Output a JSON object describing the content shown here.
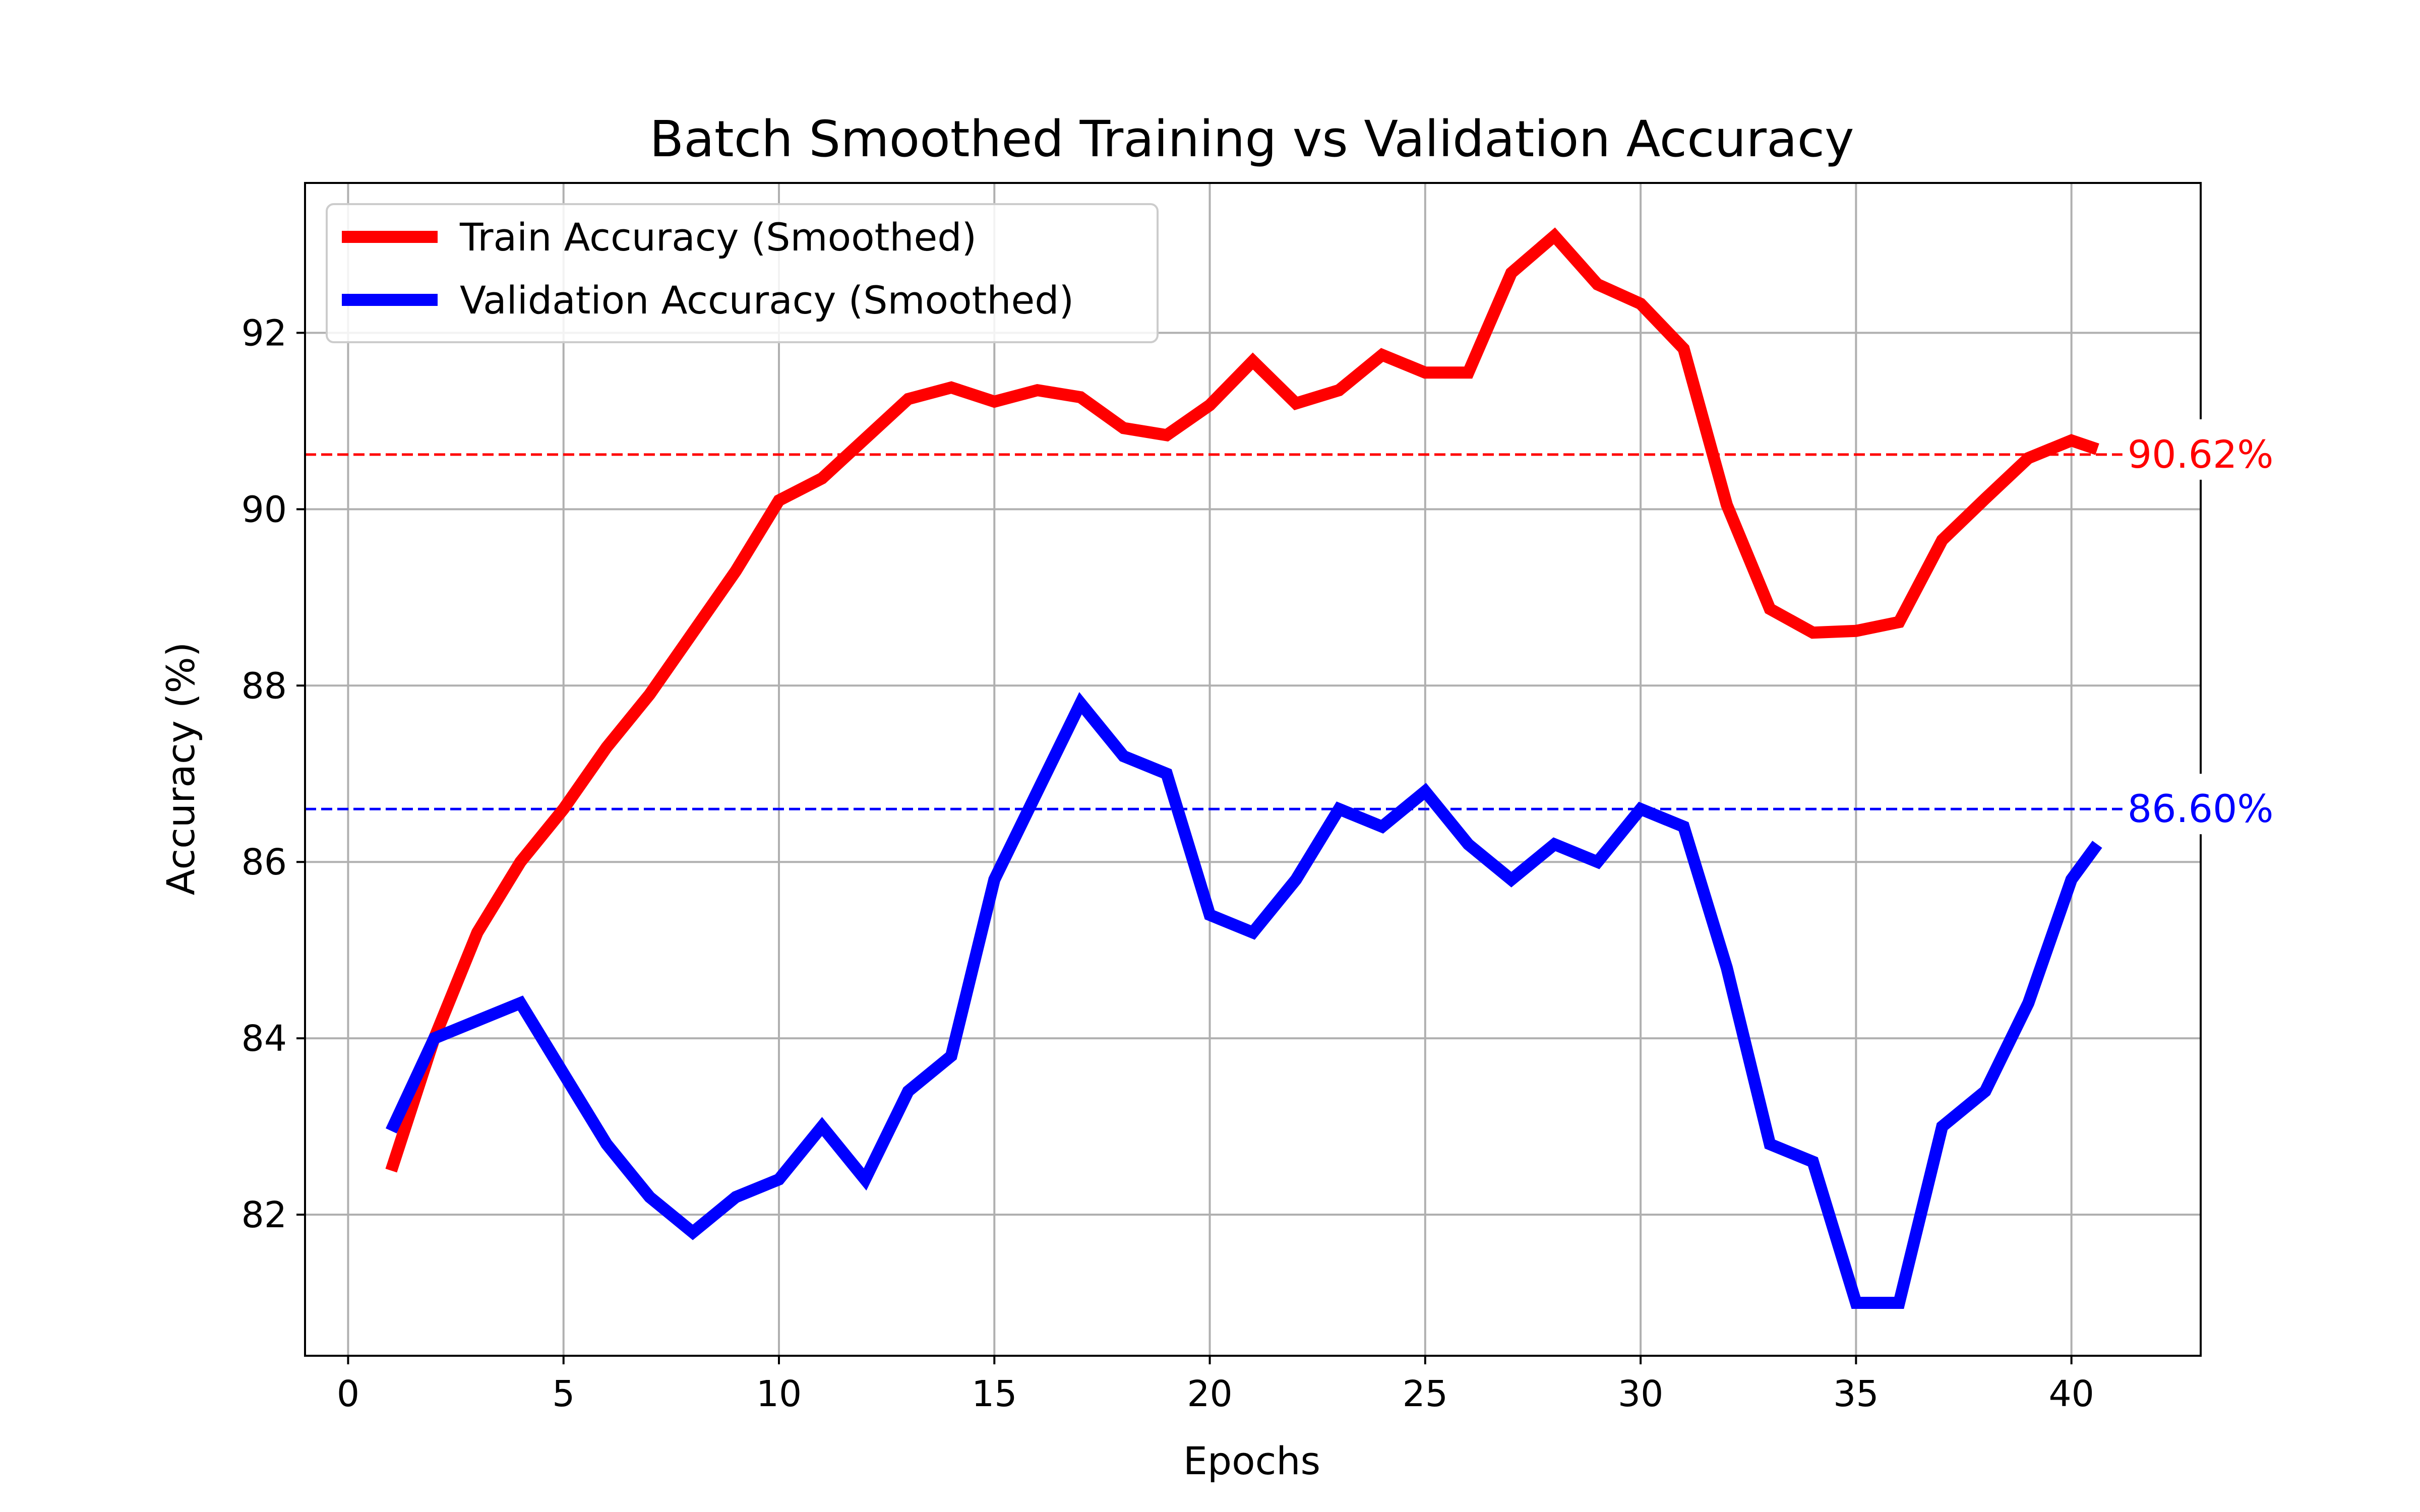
{
  "chart_data": {
    "type": "line",
    "title": "Batch Smoothed Training vs Validation Accuracy",
    "xlabel": "Epochs",
    "ylabel": "Accuracy (%)",
    "xlim": [
      -1,
      43
    ],
    "ylim": [
      80.4,
      93.7
    ],
    "xticks": [
      0,
      5,
      10,
      15,
      20,
      25,
      30,
      35,
      40
    ],
    "yticks": [
      82,
      84,
      86,
      88,
      90,
      92
    ],
    "grid": true,
    "legend_position": "upper left",
    "series": [
      {
        "name": "Train Accuracy (Smoothed)",
        "color": "#ff0000",
        "x": [
          1,
          2,
          3,
          4,
          5,
          6,
          7,
          8,
          9,
          10,
          11,
          12,
          13,
          14,
          15,
          16,
          17,
          18,
          19,
          20,
          21,
          22,
          23,
          24,
          25,
          26,
          27,
          28,
          29,
          30,
          31,
          32,
          33,
          34,
          35,
          36,
          37,
          38,
          39,
          40,
          40.6
        ],
        "values": [
          82.5,
          84.0,
          85.2,
          86.0,
          86.6,
          87.3,
          87.9,
          88.6,
          89.3,
          90.1,
          90.35,
          90.8,
          91.25,
          91.38,
          91.22,
          91.35,
          91.27,
          90.92,
          90.84,
          91.18,
          91.68,
          91.2,
          91.35,
          91.75,
          91.55,
          91.55,
          92.68,
          93.1,
          92.55,
          92.33,
          91.82,
          90.05,
          88.87,
          88.6,
          88.62,
          88.72,
          89.65,
          90.12,
          90.58,
          90.78,
          90.68
        ]
      },
      {
        "name": "Validation Accuracy (Smoothed)",
        "color": "#0000ff",
        "x": [
          1,
          2,
          3,
          4,
          5,
          6,
          7,
          8,
          9,
          10,
          11,
          12,
          13,
          14,
          15,
          16,
          17,
          18,
          19,
          20,
          21,
          22,
          23,
          24,
          25,
          26,
          27,
          28,
          29,
          30,
          31,
          32,
          33,
          34,
          35,
          36,
          37,
          38,
          39,
          40,
          40.6
        ],
        "values": [
          82.95,
          84.0,
          84.2,
          84.4,
          83.6,
          82.8,
          82.2,
          81.8,
          82.2,
          82.4,
          83.0,
          82.4,
          83.4,
          83.8,
          85.8,
          86.8,
          87.8,
          87.2,
          87.0,
          85.4,
          85.2,
          85.8,
          86.6,
          86.4,
          86.8,
          86.2,
          85.8,
          86.2,
          86.0,
          86.6,
          86.4,
          84.8,
          82.8,
          82.6,
          81.0,
          81.0,
          83.0,
          83.4,
          84.4,
          85.8,
          86.2
        ]
      }
    ],
    "reference_lines": [
      {
        "value": 90.62,
        "label": "90.62%",
        "color": "#ff0000"
      },
      {
        "value": 86.6,
        "label": "86.60%",
        "color": "#0000ff"
      }
    ]
  }
}
